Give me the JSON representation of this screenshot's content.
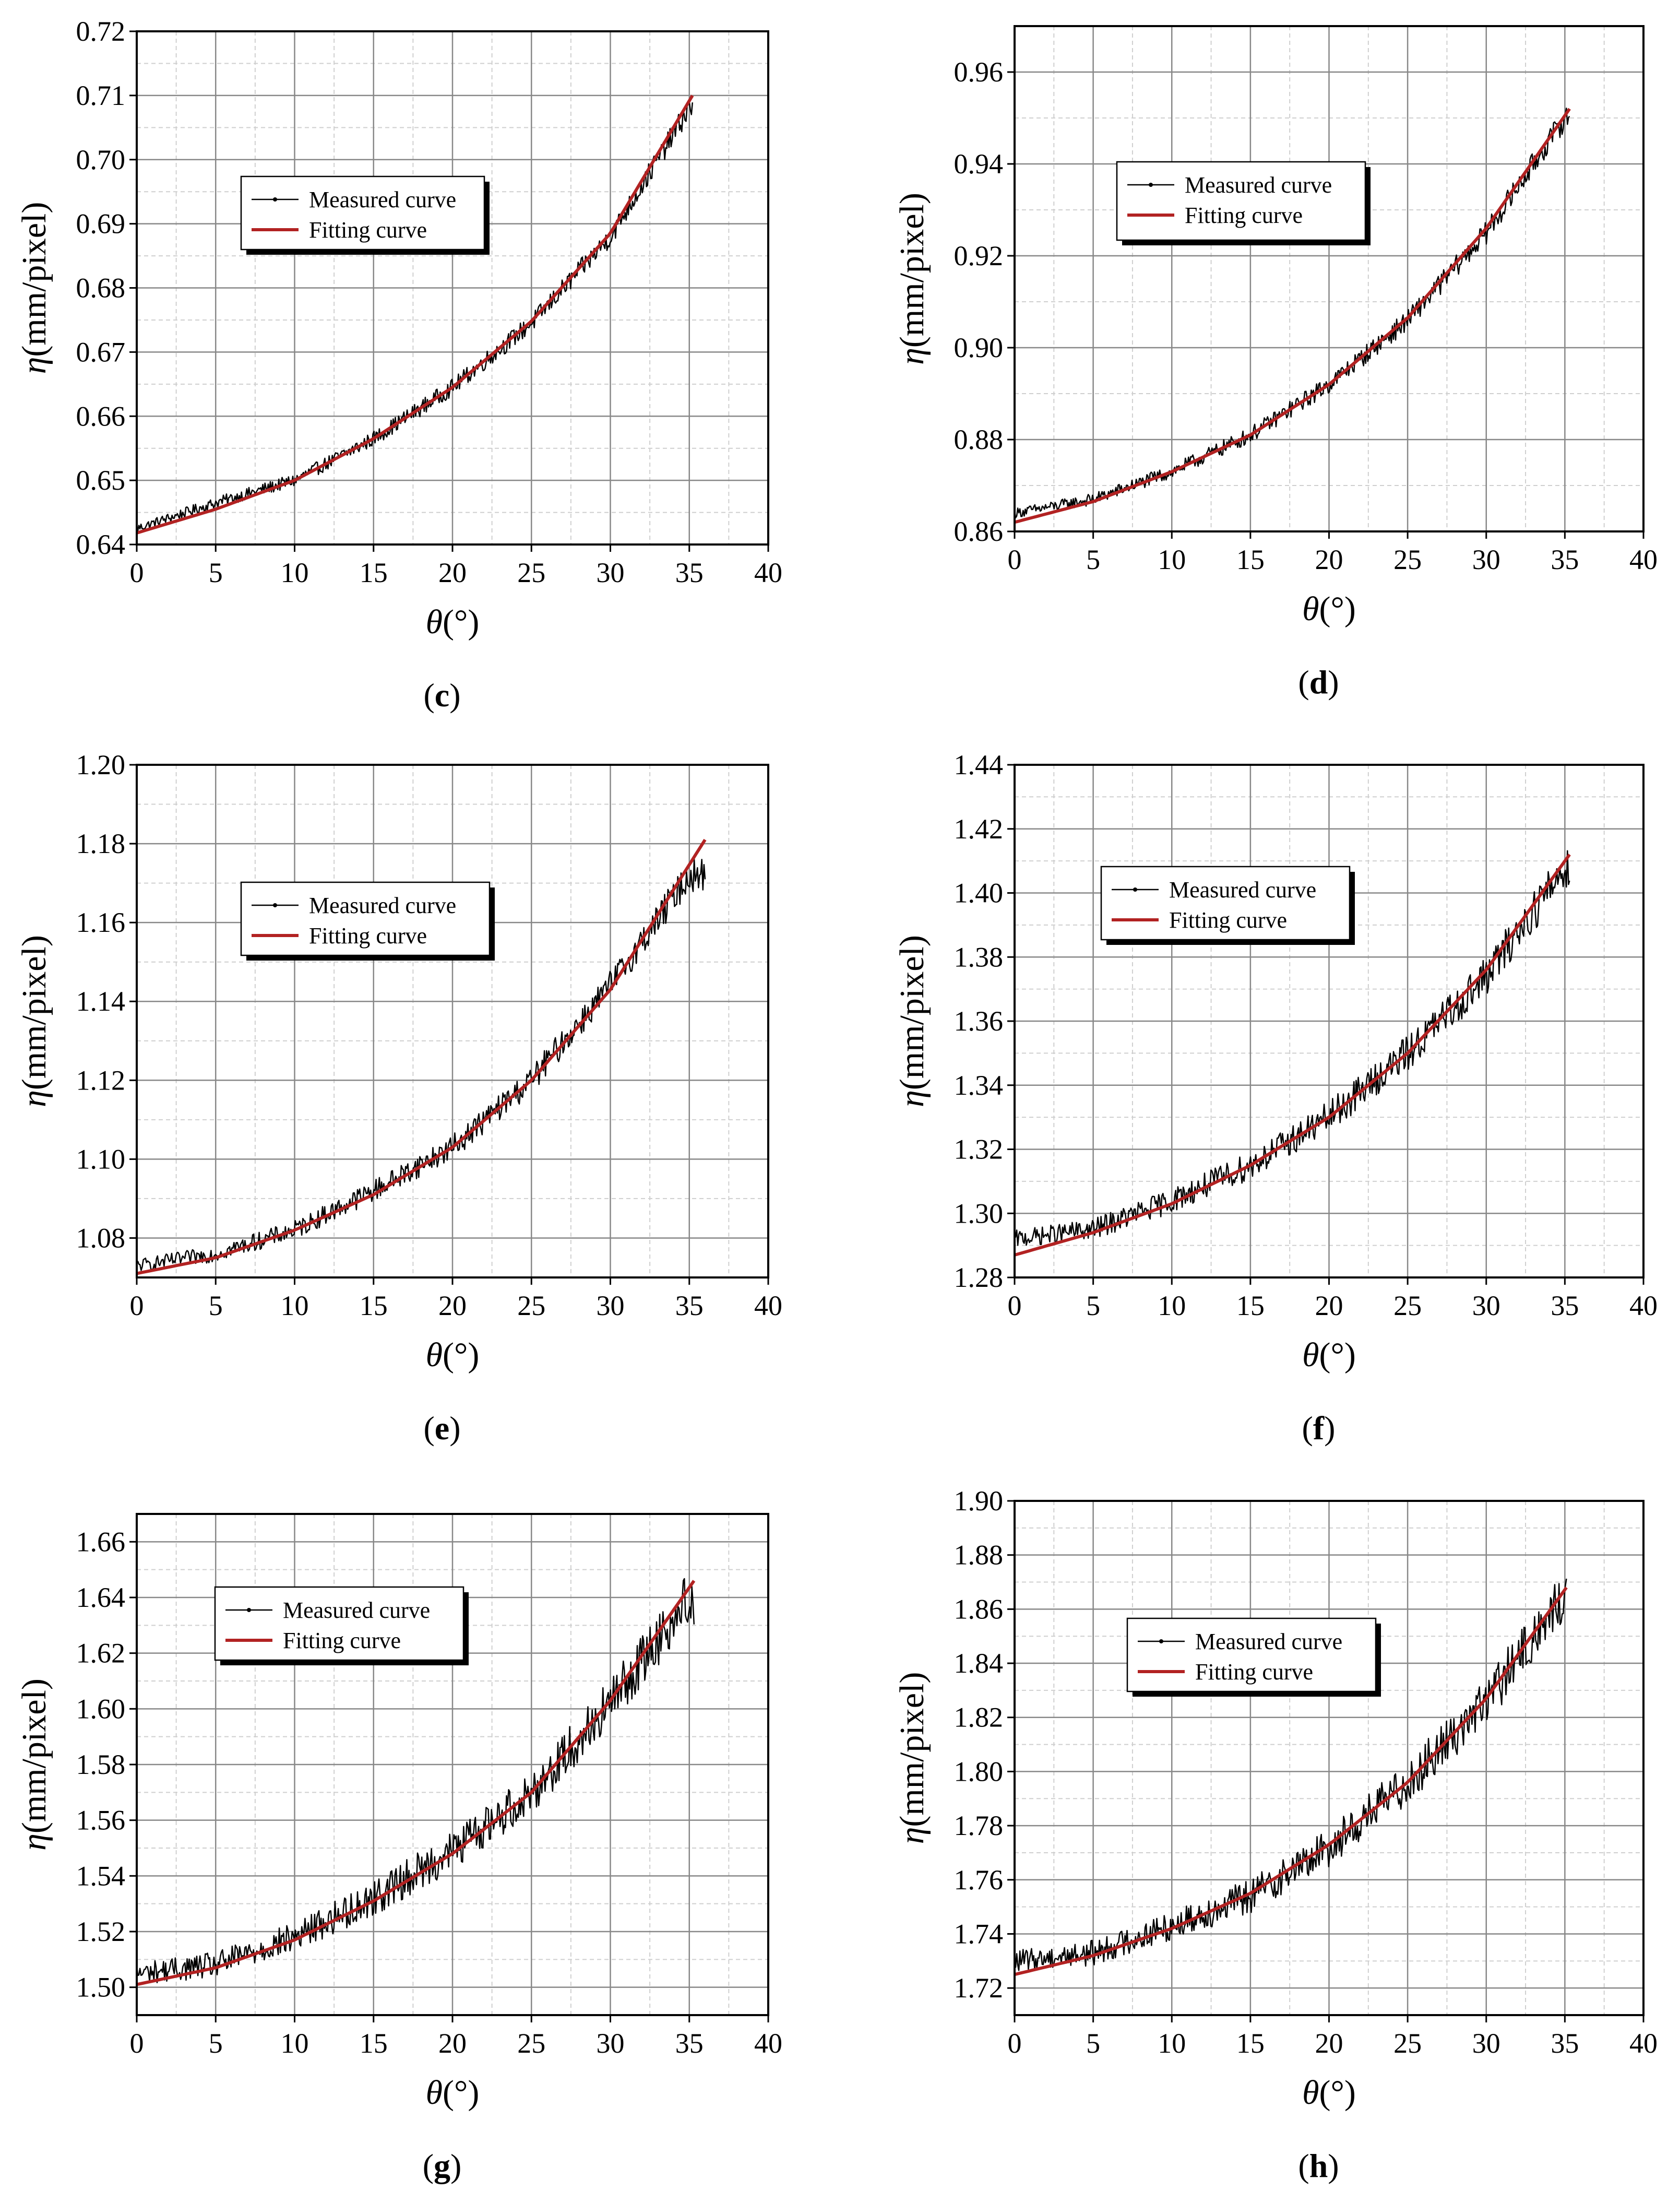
{
  "colors": {
    "measured": "#000000",
    "fitting": "#b22222",
    "major_grid": "#888888",
    "minor_grid": "#cfcfcf"
  },
  "chart_data": [
    {
      "id": "c",
      "label": "c",
      "type": "line",
      "xlabel_sym": "θ",
      "xlabel_unit": "(°)",
      "ylabel_sym": "η",
      "ylabel_unit": "(mm/pixel)",
      "xlim": [
        0,
        40
      ],
      "ylim": [
        0.64,
        0.72
      ],
      "xticks": [
        0,
        5,
        10,
        15,
        20,
        25,
        30,
        35,
        40
      ],
      "xtick_labels": [
        "0",
        "5",
        "10",
        "15",
        "20",
        "25",
        "30",
        "35",
        "40"
      ],
      "yticks": [
        0.64,
        0.65,
        0.66,
        0.67,
        0.68,
        0.69,
        0.7,
        0.71,
        0.72
      ],
      "ytick_labels": [
        "0.64",
        "0.65",
        "0.66",
        "0.67",
        "0.68",
        "0.69",
        "0.70",
        "0.71",
        "0.72"
      ],
      "legend": {
        "position": "upper-left",
        "entries": [
          "Measured curve",
          "Fitting curve"
        ]
      },
      "series": [
        {
          "name": "Measured curve",
          "x_range": [
            0,
            35.2
          ],
          "noise": 0.0012,
          "values": [
            [
              0,
              0.6425
            ],
            [
              5,
              0.6465
            ],
            [
              10,
              0.65
            ],
            [
              15,
              0.6565
            ],
            [
              20,
              0.6645
            ],
            [
              25,
              0.6745
            ],
            [
              30,
              0.688
            ],
            [
              35,
              0.708
            ]
          ]
        },
        {
          "name": "Fitting curve",
          "values": [
            [
              0,
              0.6418
            ],
            [
              5,
              0.6455
            ],
            [
              10,
              0.65
            ],
            [
              15,
              0.6565
            ],
            [
              20,
              0.6645
            ],
            [
              25,
              0.6748
            ],
            [
              30,
              0.6885
            ],
            [
              35.2,
              0.71
            ]
          ]
        }
      ]
    },
    {
      "id": "d",
      "label": "d",
      "type": "line",
      "xlabel_sym": "θ",
      "xlabel_unit": "(°)",
      "ylabel_sym": "η",
      "ylabel_unit": "(mm/pixel)",
      "xlim": [
        0,
        40
      ],
      "ylim": [
        0.86,
        0.97
      ],
      "xticks": [
        0,
        5,
        10,
        15,
        20,
        25,
        30,
        35,
        40
      ],
      "xtick_labels": [
        "0",
        "5",
        "10",
        "15",
        "20",
        "25",
        "30",
        "35",
        "40"
      ],
      "yticks": [
        0.86,
        0.88,
        0.9,
        0.92,
        0.94,
        0.96
      ],
      "ytick_labels": [
        "0.86",
        "0.88",
        "0.90",
        "0.92",
        "0.94",
        "0.96"
      ],
      "legend": {
        "position": "upper-left",
        "entries": [
          "Measured curve",
          "Fitting curve"
        ]
      },
      "series": [
        {
          "name": "Measured curve",
          "x_range": [
            0,
            35.3
          ],
          "noise": 0.0018,
          "values": [
            [
              0,
              0.864
            ],
            [
              5,
              0.867
            ],
            [
              10,
              0.873
            ],
            [
              15,
              0.881
            ],
            [
              20,
              0.892
            ],
            [
              25,
              0.906
            ],
            [
              30,
              0.925
            ],
            [
              35,
              0.95
            ]
          ]
        },
        {
          "name": "Fitting curve",
          "values": [
            [
              0,
              0.862
            ],
            [
              5,
              0.8665
            ],
            [
              10,
              0.873
            ],
            [
              15,
              0.881
            ],
            [
              20,
              0.892
            ],
            [
              25,
              0.9065
            ],
            [
              30,
              0.926
            ],
            [
              35.3,
              0.952
            ]
          ]
        }
      ]
    },
    {
      "id": "e",
      "label": "e",
      "type": "line",
      "xlabel_sym": "θ",
      "xlabel_unit": "(°)",
      "ylabel_sym": "η",
      "ylabel_unit": "(mm/pixel)",
      "xlim": [
        0,
        40
      ],
      "ylim": [
        1.07,
        1.2
      ],
      "xticks": [
        0,
        5,
        10,
        15,
        20,
        25,
        30,
        35,
        40
      ],
      "xtick_labels": [
        "0",
        "5",
        "10",
        "15",
        "20",
        "25",
        "30",
        "35",
        "40"
      ],
      "yticks": [
        1.08,
        1.1,
        1.12,
        1.14,
        1.16,
        1.18,
        1.2
      ],
      "ytick_labels": [
        "1.08",
        "1.10",
        "1.12",
        "1.14",
        "1.16",
        "1.18",
        "1.20"
      ],
      "legend": {
        "position": "upper-left",
        "entries": [
          "Measured curve",
          "Fitting curve"
        ]
      },
      "series": [
        {
          "name": "Measured curve",
          "x_range": [
            0,
            36
          ],
          "noise": 0.0028,
          "values": [
            [
              0,
              1.073
            ],
            [
              5,
              1.076
            ],
            [
              10,
              1.082
            ],
            [
              15,
              1.092
            ],
            [
              20,
              1.103
            ],
            [
              25,
              1.12
            ],
            [
              30,
              1.144
            ],
            [
              35,
              1.172
            ]
          ]
        },
        {
          "name": "Fitting curve",
          "values": [
            [
              0,
              1.071
            ],
            [
              5,
              1.075
            ],
            [
              10,
              1.082
            ],
            [
              15,
              1.091
            ],
            [
              20,
              1.103
            ],
            [
              25,
              1.12
            ],
            [
              30,
              1.143
            ],
            [
              36,
              1.181
            ]
          ]
        }
      ]
    },
    {
      "id": "f",
      "label": "f",
      "type": "line",
      "xlabel_sym": "θ",
      "xlabel_unit": "(°)",
      "ylabel_sym": "η",
      "ylabel_unit": "(mm/pixel)",
      "xlim": [
        0,
        40
      ],
      "ylim": [
        1.28,
        1.44
      ],
      "xticks": [
        0,
        5,
        10,
        15,
        20,
        25,
        30,
        35,
        40
      ],
      "xtick_labels": [
        "0",
        "5",
        "10",
        "15",
        "20",
        "25",
        "30",
        "35",
        "40"
      ],
      "yticks": [
        1.28,
        1.3,
        1.32,
        1.34,
        1.36,
        1.38,
        1.4,
        1.42,
        1.44
      ],
      "ytick_labels": [
        "1.28",
        "1.30",
        "1.32",
        "1.34",
        "1.36",
        "1.38",
        "1.40",
        "1.42",
        "1.44"
      ],
      "legend": {
        "position": "upper-left",
        "entries": [
          "Measured curve",
          "Fitting curve"
        ]
      },
      "series": [
        {
          "name": "Measured curve",
          "x_range": [
            0,
            35.3
          ],
          "noise": 0.0045,
          "values": [
            [
              0,
              1.292
            ],
            [
              5,
              1.295
            ],
            [
              10,
              1.304
            ],
            [
              15,
              1.315
            ],
            [
              20,
              1.33
            ],
            [
              25,
              1.35
            ],
            [
              30,
              1.374
            ],
            [
              35,
              1.408
            ]
          ]
        },
        {
          "name": "Fitting curve",
          "values": [
            [
              0,
              1.287
            ],
            [
              5,
              1.294
            ],
            [
              10,
              1.303
            ],
            [
              15,
              1.315
            ],
            [
              20,
              1.33
            ],
            [
              25,
              1.35
            ],
            [
              30,
              1.376
            ],
            [
              35.3,
              1.412
            ]
          ]
        }
      ]
    },
    {
      "id": "g",
      "label": "g",
      "type": "line",
      "xlabel_sym": "θ",
      "xlabel_unit": "(°)",
      "ylabel_sym": "η",
      "ylabel_unit": "(mm/pixel)",
      "xlim": [
        0,
        40
      ],
      "ylim": [
        1.49,
        1.67
      ],
      "xticks": [
        0,
        5,
        10,
        15,
        20,
        25,
        30,
        35,
        40
      ],
      "xtick_labels": [
        "0",
        "5",
        "10",
        "15",
        "20",
        "25",
        "30",
        "35",
        "40"
      ],
      "yticks": [
        1.5,
        1.52,
        1.54,
        1.56,
        1.58,
        1.6,
        1.62,
        1.64,
        1.66
      ],
      "ytick_labels": [
        "1.50",
        "1.52",
        "1.54",
        "1.56",
        "1.58",
        "1.60",
        "1.62",
        "1.64",
        "1.66"
      ],
      "legend": {
        "position": "upper-left",
        "entries": [
          "Measured curve",
          "Fitting curve"
        ]
      },
      "series": [
        {
          "name": "Measured curve",
          "x_range": [
            0,
            35.3
          ],
          "noise": 0.0065,
          "values": [
            [
              0,
              1.505
            ],
            [
              5,
              1.508
            ],
            [
              10,
              1.518
            ],
            [
              15,
              1.532
            ],
            [
              20,
              1.549
            ],
            [
              25,
              1.57
            ],
            [
              30,
              1.602
            ],
            [
              35,
              1.64
            ]
          ]
        },
        {
          "name": "Fitting curve",
          "values": [
            [
              0,
              1.501
            ],
            [
              5,
              1.507
            ],
            [
              10,
              1.517
            ],
            [
              15,
              1.531
            ],
            [
              20,
              1.548
            ],
            [
              25,
              1.57
            ],
            [
              30,
              1.603
            ],
            [
              35.3,
              1.646
            ]
          ]
        }
      ]
    },
    {
      "id": "h",
      "label": "h",
      "type": "line",
      "xlabel_sym": "θ",
      "xlabel_unit": "(°)",
      "ylabel_sym": "η",
      "ylabel_unit": "(mm/pixel)",
      "xlim": [
        0,
        40
      ],
      "ylim": [
        1.71,
        1.9
      ],
      "xticks": [
        0,
        5,
        10,
        15,
        20,
        25,
        30,
        35,
        40
      ],
      "xtick_labels": [
        "0",
        "5",
        "10",
        "15",
        "20",
        "25",
        "30",
        "35",
        "40"
      ],
      "yticks": [
        1.72,
        1.74,
        1.76,
        1.78,
        1.8,
        1.82,
        1.84,
        1.86,
        1.88,
        1.9
      ],
      "ytick_labels": [
        "1.72",
        "1.74",
        "1.76",
        "1.78",
        "1.80",
        "1.82",
        "1.84",
        "1.86",
        "1.88",
        "1.90"
      ],
      "legend": {
        "position": "upper-left",
        "entries": [
          "Measured curve",
          "Fitting curve"
        ]
      },
      "series": [
        {
          "name": "Measured curve",
          "x_range": [
            0,
            35.1
          ],
          "noise": 0.0065,
          "values": [
            [
              0,
              1.73
            ],
            [
              5,
              1.733
            ],
            [
              10,
              1.743
            ],
            [
              15,
              1.754
            ],
            [
              20,
              1.772
            ],
            [
              25,
              1.796
            ],
            [
              30,
              1.826
            ],
            [
              35,
              1.865
            ]
          ]
        },
        {
          "name": "Fitting curve",
          "values": [
            [
              0,
              1.725
            ],
            [
              5,
              1.732
            ],
            [
              10,
              1.742
            ],
            [
              15,
              1.755
            ],
            [
              20,
              1.773
            ],
            [
              25,
              1.796
            ],
            [
              30,
              1.827
            ],
            [
              35.1,
              1.868
            ]
          ]
        }
      ]
    }
  ]
}
